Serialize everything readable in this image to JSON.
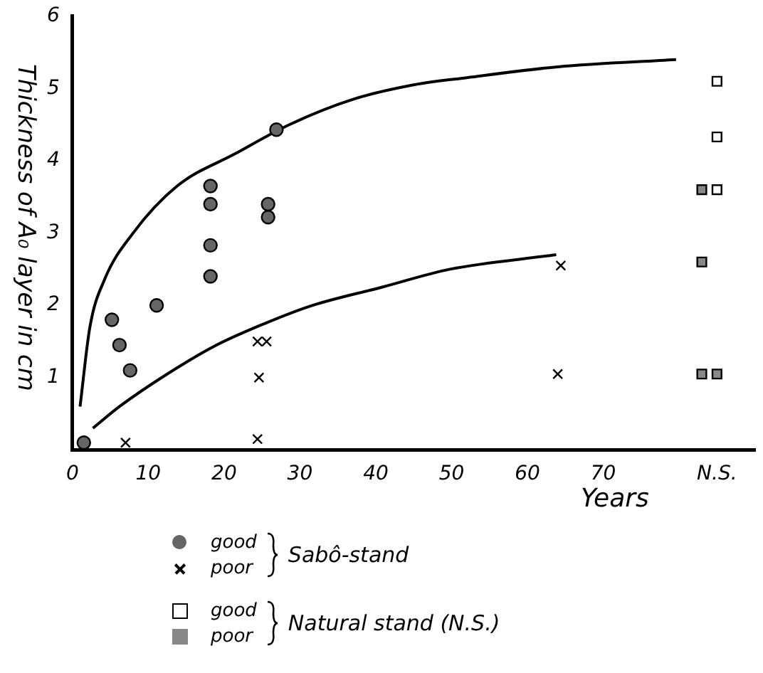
{
  "chart_data": {
    "type": "scatter",
    "xlabel": "Years",
    "ylabel": "Thickness of A₀ layer in cm",
    "xlim": [
      0,
      90
    ],
    "ylim": [
      0,
      6
    ],
    "xticks": [
      0,
      10,
      20,
      30,
      40,
      50,
      60,
      70,
      {
        "value": 85,
        "label": "N.S."
      }
    ],
    "yticks": [
      1,
      2,
      3,
      4,
      5,
      6
    ],
    "grid": false,
    "legend": "bottom",
    "annotations": [
      "Sabô-stand",
      "Natural stand (N.S.)"
    ],
    "series": [
      {
        "name": "good",
        "type": "scatter",
        "marker": "circle",
        "color": "#666666",
        "x": [
          1.5,
          5.2,
          6.2,
          7.6,
          11.1,
          18.2,
          18.2,
          18.2,
          18.2,
          25.8,
          25.8,
          26.9
        ],
        "values": [
          0.1,
          1.8,
          1.45,
          1.1,
          2.0,
          3.65,
          3.4,
          2.83,
          2.4,
          3.4,
          3.22,
          4.43
        ]
      },
      {
        "name": "poor",
        "type": "scatter",
        "marker": "cross",
        "color": "#000000",
        "x": [
          7,
          24.4,
          25.6,
          24.6,
          24.4,
          64.4,
          64
        ],
        "values": [
          0.1,
          1.5,
          1.5,
          1.0,
          0.15,
          2.55,
          1.05
        ]
      },
      {
        "name": "good",
        "type": "scatter",
        "marker": "square",
        "color": "#ffffff",
        "x": [
          85,
          85,
          85
        ],
        "values": [
          5.1,
          4.33,
          3.6
        ]
      },
      {
        "name": "poor",
        "type": "scatter",
        "marker": "square",
        "color": "#888888",
        "x": [
          83,
          83,
          83,
          85
        ],
        "values": [
          3.6,
          2.6,
          1.05,
          1.05
        ]
      },
      {
        "type": "line",
        "marker": "none",
        "color": "#000000",
        "x": [
          1,
          2.3,
          4.2,
          8,
          13.8,
          21.5,
          28.6,
          37,
          45,
          52,
          64,
          79.6
        ],
        "values": [
          0.6,
          1.7,
          2.35,
          3.0,
          3.65,
          4.1,
          4.5,
          4.85,
          5.05,
          5.15,
          5.3,
          5.4
        ]
      },
      {
        "type": "line",
        "marker": "none",
        "color": "#000000",
        "x": [
          2.7,
          6.2,
          12.5,
          19,
          25.4,
          31.7,
          40.8,
          49.8,
          63.8
        ],
        "values": [
          0.3,
          0.6,
          1.05,
          1.45,
          1.75,
          2.0,
          2.25,
          2.5,
          2.7
        ]
      }
    ]
  }
}
